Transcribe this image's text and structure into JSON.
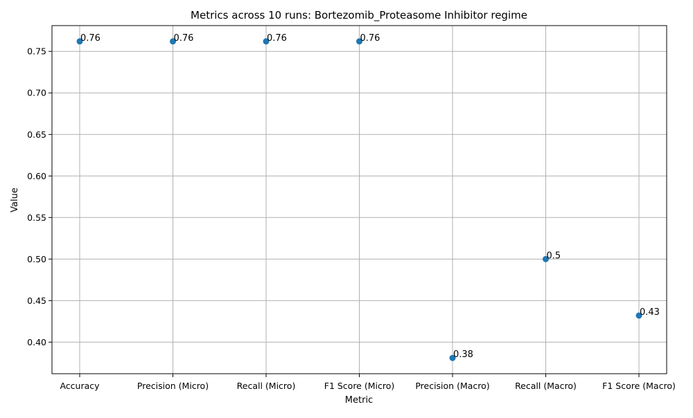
{
  "chart_data": {
    "type": "scatter",
    "title": "Metrics across 10 runs: Bortezomib_Proteasome Inhibitor regime",
    "xlabel": "Metric",
    "ylabel": "Value",
    "categories": [
      "Accuracy",
      "Precision (Micro)",
      "Recall (Micro)",
      "F1 Score (Micro)",
      "Precision (Macro)",
      "Recall (Macro)",
      "F1 Score (Macro)"
    ],
    "values": [
      0.762,
      0.762,
      0.762,
      0.762,
      0.381,
      0.5,
      0.432
    ],
    "point_labels": [
      "0.76",
      "0.76",
      "0.76",
      "0.76",
      "0.38",
      "0.5",
      "0.43"
    ],
    "ylim": [
      0.362,
      0.781
    ],
    "yticks": [
      "0.40",
      "0.45",
      "0.50",
      "0.55",
      "0.60",
      "0.65",
      "0.70",
      "0.75"
    ],
    "grid": true,
    "marker_color": "#1f77b4"
  }
}
